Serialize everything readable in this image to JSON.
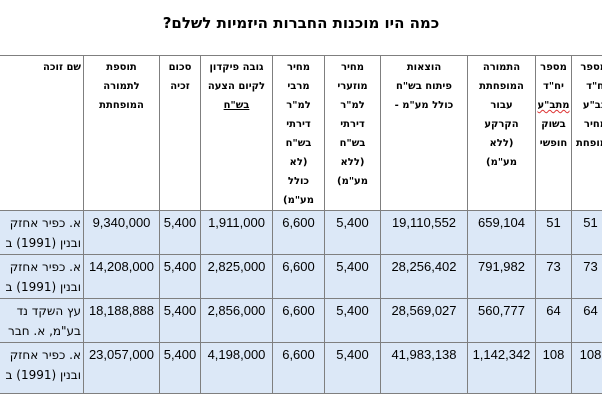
{
  "title": "כמה היו מוכנות החברות היזמיות לשלם?",
  "headers": {
    "winner": "שם זוכה",
    "bonus_1": "תוספת",
    "bonus_2": "לתמורה",
    "bonus_3": "המופחתת",
    "discount_1": "סכום",
    "discount_2": "זכיה",
    "deposit_1": "גובה פיקדון",
    "deposit_2": "לקיום הצעה",
    "deposit_3": "בש\"ח",
    "max_price": "מחיר\nמרבי\nלמ\"ר\nדירתי\nבש\"ח\n(לא\nכולל\nמע\"מ)",
    "discounted_price": "מחיר\nמוזערי\nלמ\"ר\nדירתי\nבש\"ח\n(ללא\nמע\"מ)",
    "dev_costs": "הוצאות\nפיתוח בש\"ח\nכולל מע\"מ -",
    "reduced_payment": "התמורה\nהמופחתת\nעבור\nהקרקע\n(ללא\nמע\"מ)",
    "units_free_1": "מספר",
    "units_free_2": "יח\"ד",
    "units_free_3": "מתב\"ע",
    "units_free_4": "בשוק\nחופשי",
    "units_target": "מספר\nיח\"ד\nבב\"ע\nמחיר\nמופחת"
  },
  "rows": [
    {
      "winner": "א. כפיר אחזק\nובנין (1991) ב",
      "bonus": "9,340,000",
      "discount": "5,400",
      "deposit": "1,911,000",
      "max_price": "6,600",
      "discounted_price": "5,400",
      "dev_costs": "19,110,552",
      "reduced_payment": "659,104",
      "units_free": "51",
      "units_target": "51"
    },
    {
      "winner": "א. כפיר אחזק\nובנין (1991) ב",
      "bonus": "14,208,000",
      "discount": "5,400",
      "deposit": "2,825,000",
      "max_price": "6,600",
      "discounted_price": "5,400",
      "dev_costs": "28,256,402",
      "reduced_payment": "791,982",
      "units_free": "73",
      "units_target": "73"
    },
    {
      "winner": "עץ השקד נד\nבע\"מ, א. חבר",
      "bonus": "18,188,888",
      "discount": "5,400",
      "deposit": "2,856,000",
      "max_price": "6,600",
      "discounted_price": "5,400",
      "dev_costs": "28,569,027",
      "reduced_payment": "560,777",
      "units_free": "64",
      "units_target": "64"
    },
    {
      "winner": "א. כפיר אחזק\nובנין (1991) ב",
      "bonus": "23,057,000",
      "discount": "5,400",
      "deposit": "4,198,000",
      "max_price": "6,600",
      "discounted_price": "5,400",
      "dev_costs": "41,983,138",
      "reduced_payment": "1,142,342",
      "units_free": "108",
      "units_target": "108"
    }
  ]
}
